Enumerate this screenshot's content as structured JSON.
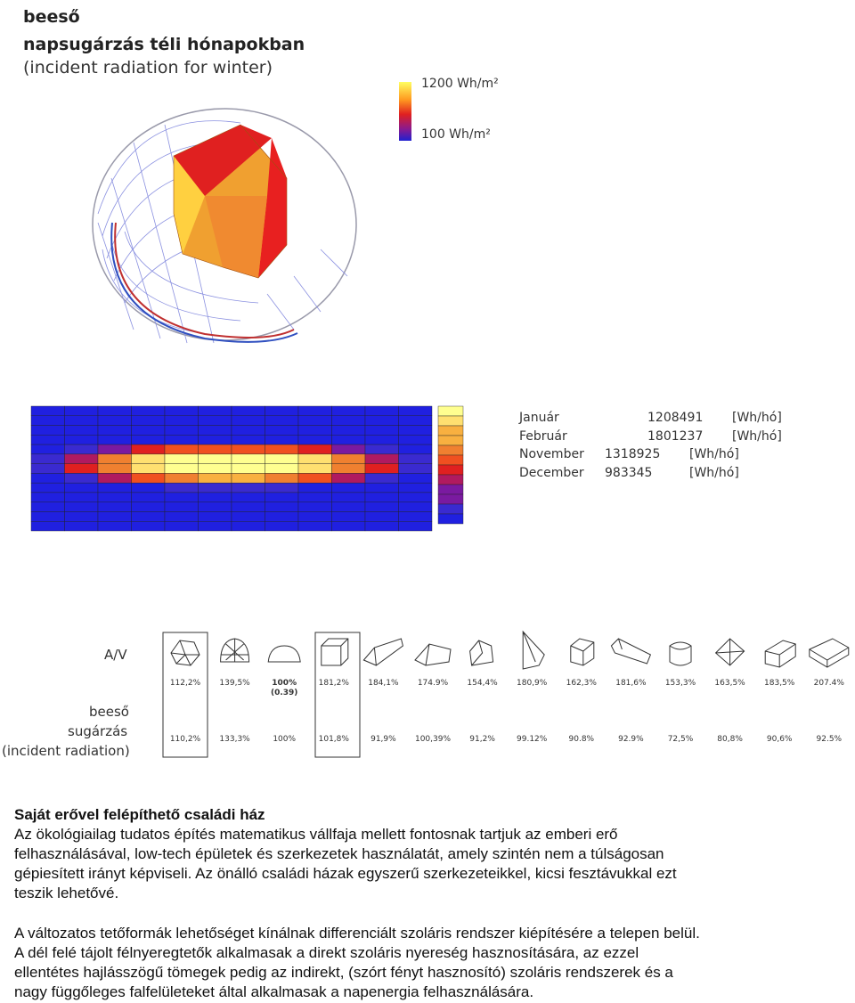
{
  "header": {
    "title": "beeső",
    "subtitle": "napsugárzás téli hónapokban",
    "subtitle_en": "(incident radiation for winter)"
  },
  "legend": {
    "max": "1200 Wh/m²",
    "min": "100 Wh/m²"
  },
  "monthly": {
    "rows": [
      [
        "Január",
        "1208491",
        "[Wh/hó]"
      ],
      [
        "Február",
        "1801237",
        "[Wh/hó]"
      ],
      [
        "November",
        "1318925",
        "[Wh/hó]"
      ],
      [
        "December",
        "983345",
        "[Wh/hó]"
      ]
    ]
  },
  "comparison": {
    "av_label": "A/V",
    "radiation_label": [
      "beeső",
      "sugárzás",
      "(incident radiation)"
    ],
    "av": [
      "112,2%",
      "139,5%",
      "100%",
      "181,2%",
      "184,1%",
      "174.9%",
      "154,4%",
      "180,9%",
      "162,3%",
      "181,6%",
      "153,3%",
      "163,5%",
      "183,5%",
      "207.4%"
    ],
    "av_note": "(0.39)",
    "radiation": [
      "110,2%",
      "133,3%",
      "100%",
      "101,8%",
      "91,9%",
      "100,39%",
      "91,2%",
      "99.12%",
      "90.8%",
      "92.9%",
      "72,5%",
      "80,8%",
      "90,6%",
      "92.5%"
    ]
  },
  "text": {
    "heading": "Saját erővel felépíthető családi ház",
    "paragraphs": [
      [
        "Az ökológiailag tudatos építés matematikus vállfaja mellett fontosnak tartjuk az emberi erő",
        "felhasználásával, low-tech épületek és szerkezetek használatát, amely szintén nem a túlságosan",
        "gépiesített irányt képviseli. Az önálló családi házak egyszerű szerkezeteikkel, kicsi fesztávukkal ezt",
        "teszik lehetővé."
      ],
      [
        "A változatos tetőformák lehetőséget kínálnak differenciált szoláris rendszer kiépítésére a telepen belül.",
        "A dél felé tájolt félnyeregtetők alkalmasak a direkt szoláris nyereség hasznosítására, az ezzel",
        "ellentétes hajlásszögű tömegek pedig az indirekt, (szórt fényt hasznosító) szoláris rendszerek és a",
        "nagy függőleges falfelületeket által alkalmasak a napenergia felhasználására."
      ]
    ]
  }
}
